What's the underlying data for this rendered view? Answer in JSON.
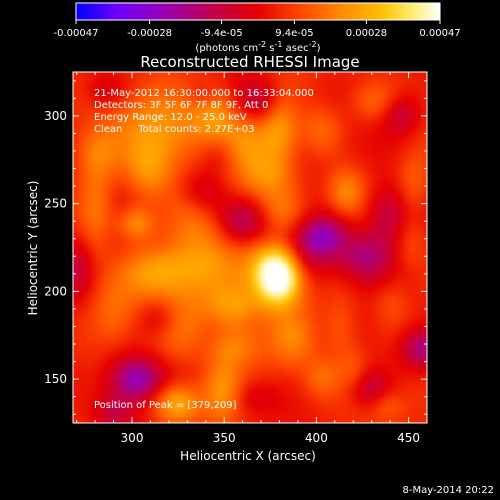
{
  "chart_data": {
    "type": "heatmap",
    "title": "Reconstructed RHESSI Image",
    "xlabel": "Heliocentric X (arcsec)",
    "ylabel": "Heliocentric Y (arcsec)",
    "xlim": [
      268,
      460
    ],
    "ylim": [
      125,
      325
    ],
    "xticks": [
      300,
      350,
      400,
      450
    ],
    "xtick_labels": [
      "300",
      "350",
      "400",
      "450"
    ],
    "yticks": [
      150,
      200,
      250,
      300
    ],
    "ytick_labels": [
      "150",
      "200",
      "250",
      "300"
    ],
    "colorbar": {
      "min": -0.00047,
      "max": 0.00047,
      "ticks": [
        -0.00047,
        -0.00028,
        -9.4e-05,
        9.4e-05,
        0.00028,
        0.00047
      ],
      "tick_labels": [
        "-0.00047",
        "-0.00028",
        "-9.4e-05",
        "9.4e-05",
        "0.00028",
        "0.00047"
      ],
      "units_label": "(photons cm⁻² s⁻¹ asec⁻²)",
      "colormap": [
        "#0000ff",
        "#6a00ff",
        "#9a00b5",
        "#c1004c",
        "#e50000",
        "#ff4a00",
        "#ff8a00",
        "#ffc000",
        "#ffef7a",
        "#ffffff"
      ]
    },
    "annotations": {
      "time_range": "21-May-2012 16:30:00.000 to 16:33:04.000",
      "detectors": "Detectors: 3F 5F 6F 7F 8F 9F, Att 0",
      "energy_range": "Energy Range: 12.0 - 25.0 keV",
      "method": "Clean     Total counts: 2.27E+03",
      "peak": "Position of Peak = [379,209]"
    },
    "footer_timestamp": "8-May-2014 20:22",
    "grid": false,
    "legend_position": "top colorbar",
    "colors": {
      "background": "#000000",
      "text": "#ffffff"
    },
    "features": [
      {
        "x": 379,
        "y": 209,
        "amp": 1.0,
        "sx": 7.5,
        "sy": 10.5
      },
      {
        "x": 384,
        "y": 211,
        "amp": 0.42,
        "sx": 10.0,
        "sy": 14.0
      },
      {
        "x": 370,
        "y": 214,
        "amp": 0.35,
        "sx": 9.0,
        "sy": 11.5
      },
      {
        "x": 355,
        "y": 191,
        "amp": 0.4,
        "sx": 11.0,
        "sy": 9.0
      },
      {
        "x": 344,
        "y": 213,
        "amp": 0.32,
        "sx": 13.0,
        "sy": 14.0
      },
      {
        "x": 318,
        "y": 292,
        "amp": 0.4,
        "sx": 18.0,
        "sy": 16.0
      },
      {
        "x": 309,
        "y": 268,
        "amp": 0.34,
        "sx": 9.0,
        "sy": 12.0
      },
      {
        "x": 302,
        "y": 239,
        "amp": 0.4,
        "sx": 7.0,
        "sy": 7.0
      },
      {
        "x": 281,
        "y": 247,
        "amp": 0.3,
        "sx": 6.5,
        "sy": 18.0
      },
      {
        "x": 281,
        "y": 279,
        "amp": 0.22,
        "sx": 8.0,
        "sy": 10.0
      },
      {
        "x": 320,
        "y": 213,
        "amp": 0.3,
        "sx": 14.0,
        "sy": 10.0
      },
      {
        "x": 335,
        "y": 242,
        "amp": 0.25,
        "sx": 11.0,
        "sy": 15.0
      },
      {
        "x": 345,
        "y": 300,
        "amp": 0.35,
        "sx": 8.0,
        "sy": 14.0
      },
      {
        "x": 362,
        "y": 285,
        "amp": 0.33,
        "sx": 10.0,
        "sy": 11.0
      },
      {
        "x": 380,
        "y": 292,
        "amp": 0.4,
        "sx": 7.0,
        "sy": 14.0
      },
      {
        "x": 373,
        "y": 266,
        "amp": 0.31,
        "sx": 10.0,
        "sy": 9.0
      },
      {
        "x": 381,
        "y": 246,
        "amp": 0.24,
        "sx": 8.0,
        "sy": 9.0
      },
      {
        "x": 403,
        "y": 292,
        "amp": 0.24,
        "sx": 8.0,
        "sy": 10.0
      },
      {
        "x": 431,
        "y": 308,
        "amp": 0.22,
        "sx": 9.0,
        "sy": 8.0
      },
      {
        "x": 416,
        "y": 257,
        "amp": 0.36,
        "sx": 7.0,
        "sy": 9.0
      },
      {
        "x": 453,
        "y": 263,
        "amp": 0.18,
        "sx": 6.0,
        "sy": 12.0
      },
      {
        "x": 308,
        "y": 208,
        "amp": 0.18,
        "sx": 12.0,
        "sy": 10.0
      },
      {
        "x": 324,
        "y": 136,
        "amp": 0.55,
        "sx": 9.0,
        "sy": 8.0
      },
      {
        "x": 326,
        "y": 182,
        "amp": 0.26,
        "sx": 10.0,
        "sy": 15.0
      },
      {
        "x": 290,
        "y": 188,
        "amp": 0.2,
        "sx": 8.0,
        "sy": 12.0
      },
      {
        "x": 349,
        "y": 144,
        "amp": 0.33,
        "sx": 7.0,
        "sy": 14.0
      },
      {
        "x": 356,
        "y": 169,
        "amp": 0.28,
        "sx": 9.0,
        "sy": 8.0
      },
      {
        "x": 388,
        "y": 173,
        "amp": 0.27,
        "sx": 9.0,
        "sy": 11.0
      },
      {
        "x": 403,
        "y": 151,
        "amp": 0.23,
        "sx": 7.0,
        "sy": 8.0
      },
      {
        "x": 413,
        "y": 178,
        "amp": 0.22,
        "sx": 7.0,
        "sy": 14.0
      },
      {
        "x": 421,
        "y": 153,
        "amp": 0.21,
        "sx": 6.0,
        "sy": 10.0
      },
      {
        "x": 438,
        "y": 136,
        "amp": 0.17,
        "sx": 7.0,
        "sy": 6.0
      },
      {
        "x": 441,
        "y": 193,
        "amp": 0.16,
        "sx": 7.0,
        "sy": 10.0
      },
      {
        "x": 451,
        "y": 227,
        "amp": 0.15,
        "sx": 6.0,
        "sy": 10.0
      },
      {
        "x": 302,
        "y": 150,
        "amp": -0.55,
        "sx": 10.0,
        "sy": 9.0
      },
      {
        "x": 316,
        "y": 185,
        "amp": -0.24,
        "sx": 8.0,
        "sy": 8.0
      },
      {
        "x": 360,
        "y": 240,
        "amp": -0.34,
        "sx": 10.0,
        "sy": 9.0
      },
      {
        "x": 338,
        "y": 256,
        "amp": -0.33,
        "sx": 9.0,
        "sy": 10.0
      },
      {
        "x": 347,
        "y": 280,
        "amp": -0.3,
        "sx": 8.0,
        "sy": 9.0
      },
      {
        "x": 370,
        "y": 308,
        "amp": -0.3,
        "sx": 9.0,
        "sy": 9.0
      },
      {
        "x": 392,
        "y": 220,
        "amp": -0.4,
        "sx": 14.0,
        "sy": 12.0
      },
      {
        "x": 404,
        "y": 232,
        "amp": -0.44,
        "sx": 9.0,
        "sy": 8.0
      },
      {
        "x": 426,
        "y": 220,
        "amp": -0.42,
        "sx": 10.0,
        "sy": 10.0
      },
      {
        "x": 439,
        "y": 244,
        "amp": -0.36,
        "sx": 8.0,
        "sy": 12.0
      },
      {
        "x": 457,
        "y": 167,
        "amp": -0.42,
        "sx": 8.0,
        "sy": 8.0
      },
      {
        "x": 446,
        "y": 301,
        "amp": -0.28,
        "sx": 7.0,
        "sy": 8.0
      },
      {
        "x": 428,
        "y": 145,
        "amp": -0.32,
        "sx": 8.0,
        "sy": 8.0
      },
      {
        "x": 270,
        "y": 212,
        "amp": -0.22,
        "sx": 6.0,
        "sy": 12.0
      },
      {
        "x": 290,
        "y": 131,
        "amp": -0.24,
        "sx": 7.0,
        "sy": 7.0
      },
      {
        "x": 286,
        "y": 314,
        "amp": -0.18,
        "sx": 8.0,
        "sy": 7.0
      },
      {
        "x": 339,
        "y": 312,
        "amp": -0.16,
        "sx": 6.0,
        "sy": 5.0
      },
      {
        "x": 365,
        "y": 140,
        "amp": -0.18,
        "sx": 9.0,
        "sy": 7.0
      }
    ]
  }
}
